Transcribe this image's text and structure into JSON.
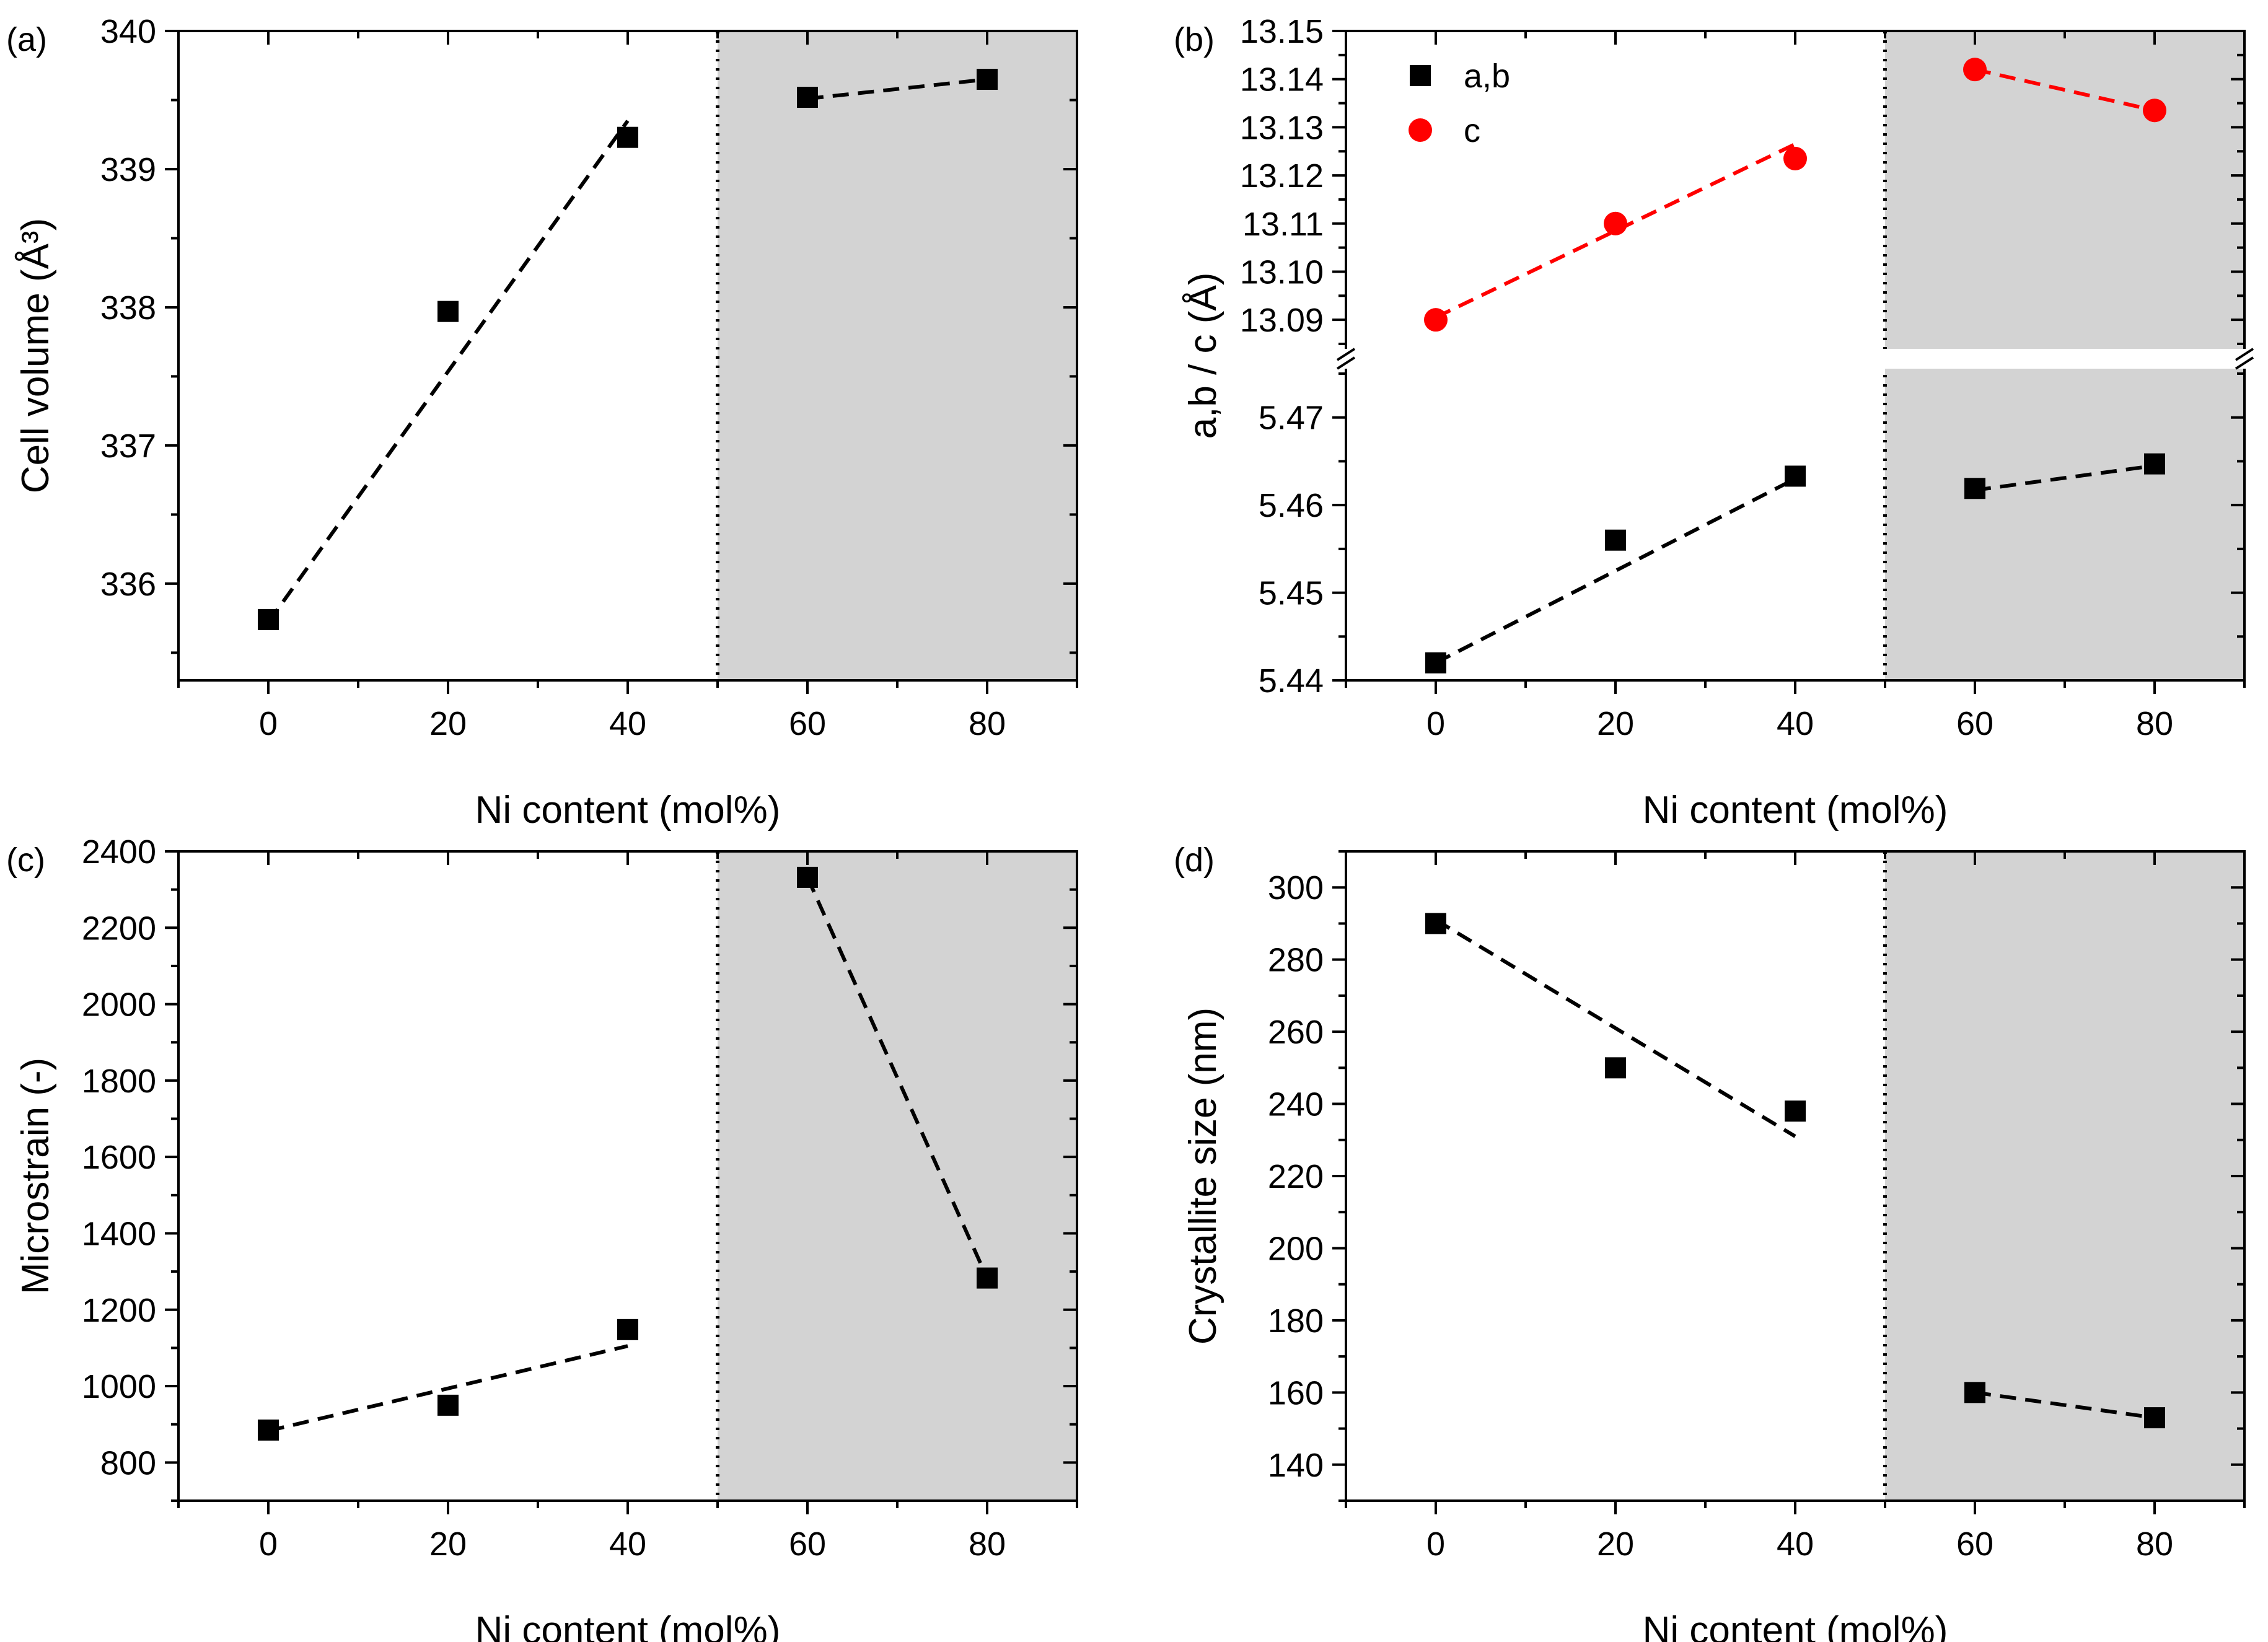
{
  "chart_data": [
    {
      "panel_label": "(a)",
      "type": "scatter",
      "xlabel": "Ni content (mol%)",
      "ylabel": "Cell volume (Å³)",
      "xlim": [
        -10,
        90
      ],
      "ylim": [
        335.3,
        340
      ],
      "xticks": [
        0,
        20,
        40,
        60,
        80
      ],
      "xtick_labels": [
        "0",
        "20",
        "40",
        "60",
        "80"
      ],
      "yticks": [
        336,
        337,
        338,
        339,
        340
      ],
      "ytick_labels": [
        "336",
        "337",
        "338",
        "339",
        "340"
      ],
      "series": [
        {
          "name": "cell volume",
          "marker": "square",
          "color": "#000000",
          "x": [
            0,
            20,
            40,
            60,
            80
          ],
          "y": [
            335.74,
            337.97,
            339.23,
            339.52,
            339.65
          ]
        }
      ],
      "fits": [
        {
          "x": [
            0,
            40
          ],
          "y": [
            335.72,
            339.35
          ],
          "color": "#000000"
        },
        {
          "x": [
            60,
            80
          ],
          "y": [
            339.51,
            339.65
          ],
          "color": "#000000"
        }
      ],
      "divider_x": 50,
      "shaded_range": [
        50,
        90
      ]
    },
    {
      "panel_label": "(b)",
      "type": "scatter",
      "xlabel": "Ni content (mol%)",
      "ylabel": "a,b / c (Å)",
      "xlim": [
        -10,
        90
      ],
      "xticks": [
        0,
        20,
        40,
        60,
        80
      ],
      "xtick_labels": [
        "0",
        "20",
        "40",
        "60",
        "80"
      ],
      "broken_axis": true,
      "upper_ylim": [
        13.085,
        13.15
      ],
      "upper_yticks": [
        13.09,
        13.1,
        13.11,
        13.12,
        13.13,
        13.14,
        13.15
      ],
      "upper_ytick_labels": [
        "13.09",
        "13.10",
        "13.11",
        "13.12",
        "13.13",
        "13.14",
        "13.15"
      ],
      "lower_ylim": [
        5.44,
        5.475
      ],
      "lower_yticks": [
        5.44,
        5.45,
        5.46,
        5.47
      ],
      "lower_ytick_labels": [
        "5.44",
        "5.45",
        "5.46",
        "5.47"
      ],
      "series": [
        {
          "name": "a,b",
          "marker": "square",
          "color": "#000000",
          "segment": "lower",
          "x": [
            0,
            20,
            40,
            60,
            80
          ],
          "y": [
            5.442,
            5.456,
            5.4633,
            5.4619,
            5.4647
          ]
        },
        {
          "name": "c",
          "marker": "circle",
          "color": "#ff0000",
          "segment": "upper",
          "x": [
            0,
            20,
            40,
            60,
            80
          ],
          "y": [
            13.09,
            13.11,
            13.1235,
            13.142,
            13.1335
          ]
        }
      ],
      "fits": [
        {
          "segment": "lower",
          "x": [
            0,
            40
          ],
          "y": [
            5.442,
            5.463
          ],
          "color": "#000000"
        },
        {
          "segment": "lower",
          "x": [
            60,
            80
          ],
          "y": [
            5.4617,
            5.4645
          ],
          "color": "#000000"
        },
        {
          "segment": "upper",
          "x": [
            0,
            40
          ],
          "y": [
            13.0905,
            13.1265
          ],
          "color": "#ff0000"
        },
        {
          "segment": "upper",
          "x": [
            60,
            80
          ],
          "y": [
            13.142,
            13.1335
          ],
          "color": "#ff0000"
        }
      ],
      "legend": [
        {
          "label": "a,b",
          "marker": "square",
          "color": "#000000"
        },
        {
          "label": "c",
          "marker": "circle",
          "color": "#ff0000"
        }
      ],
      "legend_position": "top-left",
      "divider_x": 50,
      "shaded_range": [
        50,
        90
      ]
    },
    {
      "panel_label": "(c)",
      "type": "scatter",
      "xlabel": "Ni content (mol%)",
      "ylabel": "Microstrain (-)",
      "xlim": [
        -10,
        90
      ],
      "ylim": [
        700,
        2400
      ],
      "xticks": [
        0,
        20,
        40,
        60,
        80
      ],
      "xtick_labels": [
        "0",
        "20",
        "40",
        "60",
        "80"
      ],
      "yticks": [
        800,
        1000,
        1200,
        1400,
        1600,
        1800,
        2000,
        2200,
        2400
      ],
      "ytick_labels": [
        "800",
        "1000",
        "1200",
        "1400",
        "1600",
        "1800",
        "2000",
        "2200",
        "2400"
      ],
      "series": [
        {
          "name": "microstrain",
          "marker": "square",
          "color": "#000000",
          "x": [
            0,
            20,
            40,
            60,
            80
          ],
          "y": [
            885,
            950,
            1148,
            2332,
            1283
          ]
        }
      ],
      "fits": [
        {
          "x": [
            0,
            40
          ],
          "y": [
            883,
            1105
          ],
          "color": "#000000"
        },
        {
          "x": [
            60,
            80
          ],
          "y": [
            2332,
            1283
          ],
          "color": "#000000"
        }
      ],
      "divider_x": 50,
      "shaded_range": [
        50,
        90
      ]
    },
    {
      "panel_label": "(d)",
      "type": "scatter",
      "xlabel": "Ni content (mol%)",
      "ylabel": "Crystallite size (nm)",
      "xlim": [
        -10,
        90
      ],
      "ylim": [
        130,
        310
      ],
      "xticks": [
        0,
        20,
        40,
        60,
        80
      ],
      "xtick_labels": [
        "0",
        "20",
        "40",
        "60",
        "80"
      ],
      "yticks": [
        140,
        160,
        180,
        200,
        220,
        240,
        260,
        280,
        300
      ],
      "ytick_labels": [
        "140",
        "160",
        "180",
        "200",
        "220",
        "240",
        "260",
        "280",
        "300"
      ],
      "series": [
        {
          "name": "crystallite size",
          "marker": "square",
          "color": "#000000",
          "x": [
            0,
            20,
            40,
            60,
            80
          ],
          "y": [
            290,
            250,
            238,
            160,
            153
          ]
        }
      ],
      "fits": [
        {
          "x": [
            0,
            40
          ],
          "y": [
            291,
            231
          ],
          "color": "#000000"
        },
        {
          "x": [
            60,
            80
          ],
          "y": [
            160,
            153
          ],
          "color": "#000000"
        }
      ],
      "divider_x": 50,
      "shaded_range": [
        50,
        90
      ]
    }
  ]
}
